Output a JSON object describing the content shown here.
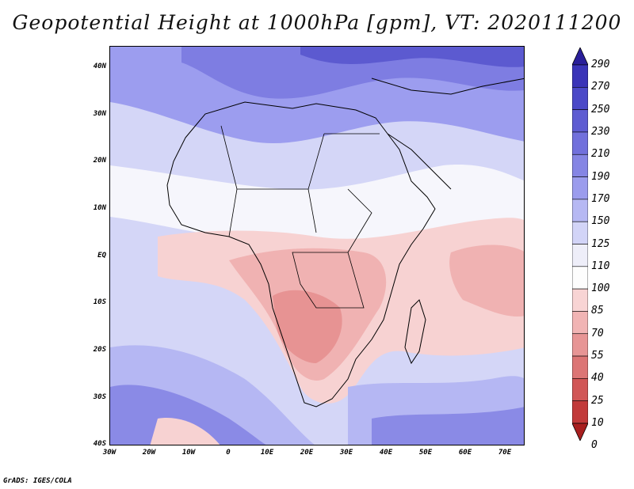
{
  "title": "Geopotential Height at 1000hPa [gpm], VT: 2020111200",
  "credit": "GrADS: IGES/COLA",
  "map": {
    "lat_labels": [
      "40N",
      "30N",
      "20N",
      "10N",
      "EQ",
      "10S",
      "20S",
      "30S",
      "40S"
    ],
    "lon_labels": [
      "30W",
      "20W",
      "10W",
      "0",
      "10E",
      "20E",
      "30E",
      "40E",
      "50E",
      "60E",
      "70E"
    ],
    "lat_range": [
      -40,
      45
    ],
    "lon_range": [
      -30,
      75
    ]
  },
  "colorbar": {
    "labels": [
      "290",
      "270",
      "250",
      "230",
      "210",
      "190",
      "170",
      "150",
      "125",
      "110",
      "100",
      "85",
      "70",
      "55",
      "40",
      "25",
      "10",
      "0"
    ],
    "colors": [
      "#2a1f9a",
      "#3a34b8",
      "#4b49c8",
      "#5e5cd2",
      "#7170dc",
      "#8585e4",
      "#9b9ced",
      "#b6b8f3",
      "#d2d4f7",
      "#eeeef9",
      "#fdfdfd",
      "#f8d4d4",
      "#f1b4b4",
      "#e79595",
      "#dc7575",
      "#d15656",
      "#c23a3a",
      "#a81f1f"
    ]
  }
}
